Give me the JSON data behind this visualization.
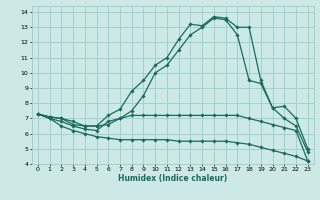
{
  "title": "",
  "xlabel": "Humidex (Indice chaleur)",
  "xlim": [
    -0.5,
    23.5
  ],
  "ylim": [
    4,
    14.4
  ],
  "xticks": [
    0,
    1,
    2,
    3,
    4,
    5,
    6,
    7,
    8,
    9,
    10,
    11,
    12,
    13,
    14,
    15,
    16,
    17,
    18,
    19,
    20,
    21,
    22,
    23
  ],
  "yticks": [
    4,
    5,
    6,
    7,
    8,
    9,
    10,
    11,
    12,
    13,
    14
  ],
  "bg_color": "#cce9e5",
  "grid_color": "#99cfc9",
  "line_color": "#1a6b5e",
  "line_width": 0.9,
  "marker": "D",
  "marker_size": 1.8,
  "lines": [
    {
      "x": [
        0,
        1,
        2,
        3,
        4,
        5,
        6,
        7,
        8,
        9,
        10,
        11,
        12,
        13,
        14,
        15,
        16,
        17,
        18,
        19,
        20,
        21,
        22,
        23
      ],
      "y": [
        7.3,
        7.1,
        7.0,
        6.6,
        6.5,
        6.5,
        7.2,
        7.6,
        8.8,
        9.5,
        10.5,
        11.0,
        12.2,
        13.2,
        13.1,
        13.7,
        13.6,
        13.0,
        13.0,
        9.5,
        7.7,
        7.8,
        7.0,
        5.0
      ]
    },
    {
      "x": [
        0,
        1,
        2,
        3,
        4,
        5,
        6,
        7,
        8,
        9,
        10,
        11,
        12,
        13,
        14,
        15,
        16,
        17,
        18,
        19,
        20,
        21,
        22,
        23
      ],
      "y": [
        7.3,
        7.0,
        6.8,
        6.5,
        6.3,
        6.2,
        6.8,
        7.0,
        7.5,
        8.5,
        10.0,
        10.5,
        11.5,
        12.5,
        13.0,
        13.6,
        13.5,
        12.5,
        9.5,
        9.3,
        7.7,
        7.0,
        6.5,
        4.8
      ]
    },
    {
      "x": [
        0,
        1,
        2,
        3,
        4,
        5,
        6,
        7,
        8,
        9,
        10,
        11,
        12,
        13,
        14,
        15,
        16,
        17,
        18,
        19,
        20,
        21,
        22,
        23
      ],
      "y": [
        7.3,
        7.1,
        7.0,
        6.8,
        6.5,
        6.5,
        6.6,
        7.0,
        7.2,
        7.2,
        7.2,
        7.2,
        7.2,
        7.2,
        7.2,
        7.2,
        7.2,
        7.2,
        7.0,
        6.8,
        6.6,
        6.4,
        6.2,
        4.2
      ]
    },
    {
      "x": [
        0,
        1,
        2,
        3,
        4,
        5,
        6,
        7,
        8,
        9,
        10,
        11,
        12,
        13,
        14,
        15,
        16,
        17,
        18,
        19,
        20,
        21,
        22,
        23
      ],
      "y": [
        7.3,
        7.0,
        6.5,
        6.2,
        6.0,
        5.8,
        5.7,
        5.6,
        5.6,
        5.6,
        5.6,
        5.6,
        5.5,
        5.5,
        5.5,
        5.5,
        5.5,
        5.4,
        5.3,
        5.1,
        4.9,
        4.7,
        4.5,
        4.2
      ]
    }
  ]
}
